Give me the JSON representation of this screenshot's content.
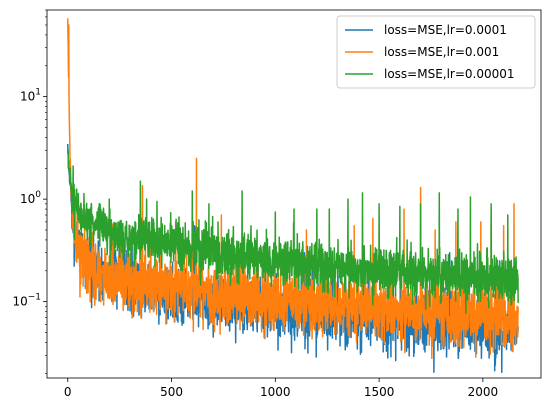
{
  "chart_data": {
    "type": "line",
    "title": "",
    "xlabel": "",
    "ylabel": "",
    "xlim": [
      -100,
      2280
    ],
    "ylim": [
      0.018,
      70
    ],
    "yscale": "log",
    "grid": false,
    "legend_position": "top-right",
    "x_ticks": [
      0,
      500,
      1000,
      1500,
      2000
    ],
    "x_tick_labels": [
      "0",
      "500",
      "1000",
      "1500",
      "2000"
    ],
    "y_ticks": [
      0.1,
      1,
      10
    ],
    "y_tick_labels": [
      "10",
      "10",
      "10"
    ],
    "y_tick_exponents": [
      "−1",
      "0",
      "1"
    ],
    "x_max": 2170,
    "series": [
      {
        "name": "loss=MSE,lr=0.0001",
        "color": "#1f77b4",
        "trend": [
          [
            0,
            3.0
          ],
          [
            15,
            1.0
          ],
          [
            30,
            0.45
          ],
          [
            60,
            0.3
          ],
          [
            100,
            0.24
          ],
          [
            200,
            0.19
          ],
          [
            300,
            0.155
          ],
          [
            500,
            0.12
          ],
          [
            700,
            0.1
          ],
          [
            1000,
            0.085
          ],
          [
            1300,
            0.075
          ],
          [
            1600,
            0.066
          ],
          [
            1900,
            0.058
          ],
          [
            2170,
            0.054
          ]
        ],
        "noise": 0.33,
        "spikes": [
          [
            30,
            1.2
          ],
          [
            250,
            0.35
          ],
          [
            610,
            0.55
          ],
          [
            1140,
            0.3
          ],
          [
            1550,
            0.3
          ],
          [
            1700,
            0.28
          ],
          [
            1840,
            0.3
          ],
          [
            2080,
            0.25
          ]
        ]
      },
      {
        "name": "loss=MSE,lr=0.001",
        "color": "#ff7f0e",
        "trend": [
          [
            0,
            50.0
          ],
          [
            10,
            3.0
          ],
          [
            20,
            0.8
          ],
          [
            40,
            0.35
          ],
          [
            80,
            0.24
          ],
          [
            200,
            0.17
          ],
          [
            400,
            0.145
          ],
          [
            700,
            0.125
          ],
          [
            1000,
            0.105
          ],
          [
            1300,
            0.093
          ],
          [
            1600,
            0.084
          ],
          [
            1900,
            0.076
          ],
          [
            2170,
            0.07
          ]
        ],
        "noise": 0.35,
        "spikes": [
          [
            5,
            50.0
          ],
          [
            35,
            1.0
          ],
          [
            255,
            0.45
          ],
          [
            360,
            1.35
          ],
          [
            400,
            0.4
          ],
          [
            520,
            0.6
          ],
          [
            600,
            0.7
          ],
          [
            620,
            2.5
          ],
          [
            740,
            0.7
          ],
          [
            1150,
            0.5
          ],
          [
            1380,
            0.55
          ],
          [
            1470,
            0.65
          ],
          [
            1620,
            0.8
          ],
          [
            1700,
            1.3
          ],
          [
            1770,
            0.5
          ],
          [
            1870,
            0.6
          ],
          [
            1990,
            0.6
          ],
          [
            2040,
            0.7
          ],
          [
            2100,
            0.55
          ],
          [
            2150,
            0.9
          ]
        ]
      },
      {
        "name": "loss=MSE,lr=0.00001",
        "color": "#2ca02c",
        "trend": [
          [
            0,
            2.8
          ],
          [
            15,
            1.3
          ],
          [
            30,
            0.9
          ],
          [
            60,
            0.72
          ],
          [
            100,
            0.62
          ],
          [
            200,
            0.48
          ],
          [
            300,
            0.42
          ],
          [
            500,
            0.36
          ],
          [
            700,
            0.31
          ],
          [
            1000,
            0.25
          ],
          [
            1300,
            0.22
          ],
          [
            1600,
            0.2
          ],
          [
            1900,
            0.18
          ],
          [
            2170,
            0.17
          ]
        ],
        "noise": 0.26,
        "spikes": [
          [
            30,
            1.4
          ],
          [
            200,
            1.0
          ],
          [
            350,
            1.5
          ],
          [
            380,
            1.0
          ],
          [
            430,
            0.95
          ],
          [
            600,
            1.2
          ],
          [
            680,
            0.9
          ],
          [
            840,
            1.2
          ],
          [
            1000,
            0.75
          ],
          [
            1090,
            0.8
          ],
          [
            1200,
            0.8
          ],
          [
            1260,
            0.8
          ],
          [
            1350,
            1.0
          ],
          [
            1420,
            1.15
          ],
          [
            1500,
            0.9
          ],
          [
            1600,
            0.85
          ],
          [
            1700,
            0.9
          ],
          [
            1790,
            1.15
          ],
          [
            1880,
            0.8
          ],
          [
            1940,
            1.05
          ],
          [
            2040,
            0.9
          ],
          [
            2120,
            0.7
          ]
        ]
      }
    ]
  }
}
